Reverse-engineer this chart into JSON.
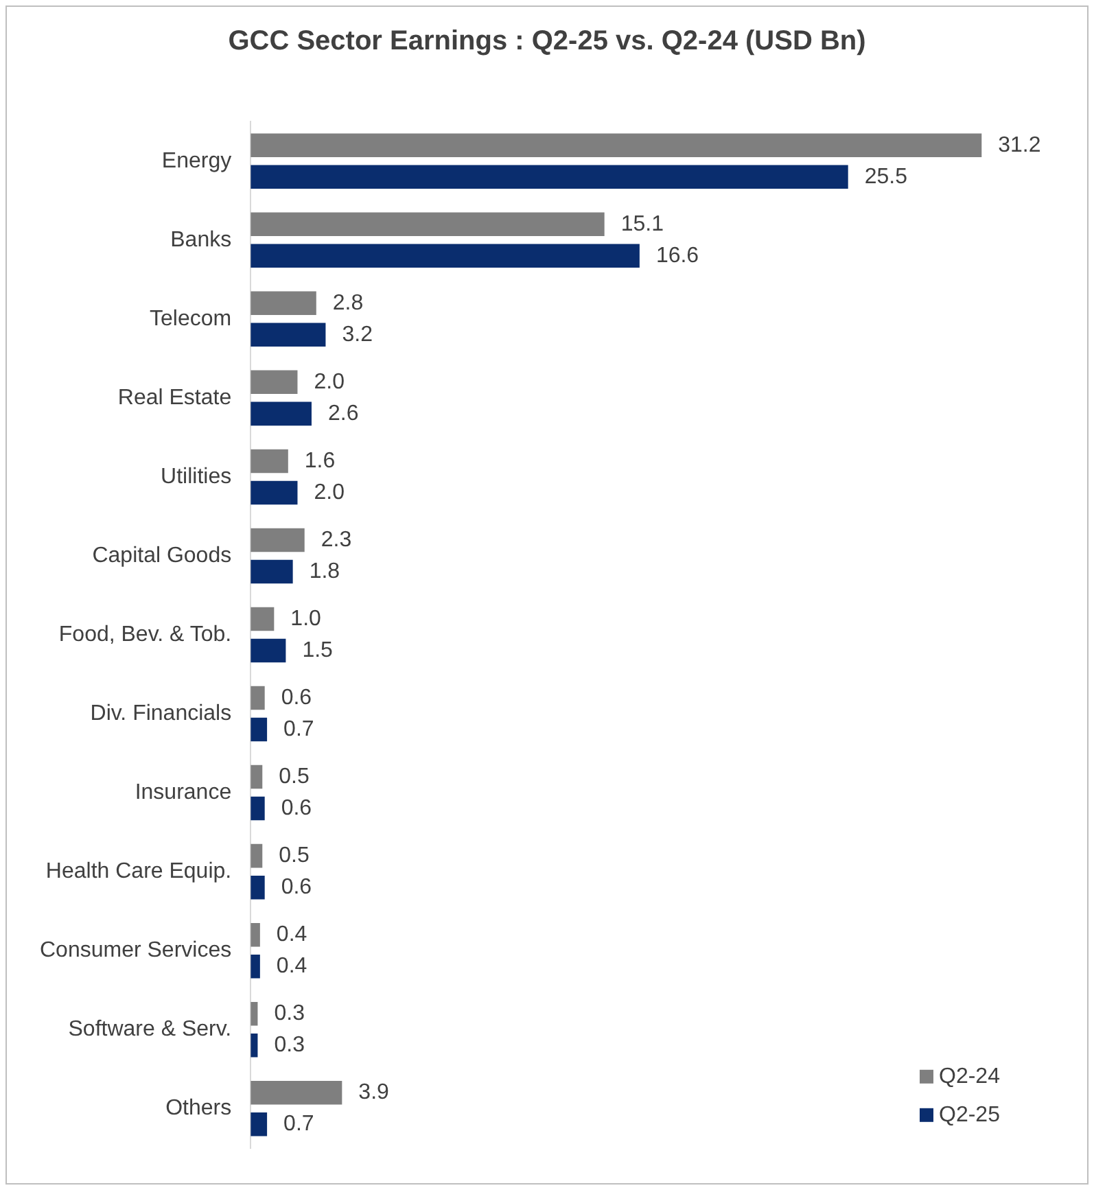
{
  "chart_data": {
    "type": "bar",
    "orientation": "horizontal",
    "title": "GCC  Sector Earnings : Q2-25 vs. Q2-24 (USD Bn)",
    "categories": [
      "Energy",
      "Banks",
      "Telecom",
      "Real Estate",
      "Utilities",
      "Capital Goods",
      "Food, Bev. & Tob.",
      "Div. Financials",
      "Insurance",
      "Health Care Equip.",
      "Consumer Services",
      "Software & Serv.",
      "Others"
    ],
    "series": [
      {
        "name": "Q2-24",
        "color": "#7f7f7f",
        "values": [
          31.2,
          15.1,
          2.8,
          2.0,
          1.6,
          2.3,
          1.0,
          0.6,
          0.5,
          0.5,
          0.4,
          0.3,
          3.9
        ],
        "value_labels": [
          "31.2",
          "15.1",
          "2.8",
          "2.0",
          "1.6",
          "2.3",
          "1.0",
          "0.6",
          "0.5",
          "0.5",
          "0.4",
          "0.3",
          "3.9"
        ]
      },
      {
        "name": "Q2-25",
        "color": "#0a2d6e",
        "values": [
          25.5,
          16.6,
          3.2,
          2.6,
          2.0,
          1.8,
          1.5,
          0.7,
          0.6,
          0.6,
          0.4,
          0.3,
          0.7
        ],
        "value_labels": [
          "25.5",
          "16.6",
          "3.2",
          "2.6",
          "2.0",
          "1.8",
          "1.5",
          "0.7",
          "0.6",
          "0.6",
          "0.4",
          "0.3",
          "0.7"
        ]
      }
    ],
    "legend": "bottom right"
  }
}
